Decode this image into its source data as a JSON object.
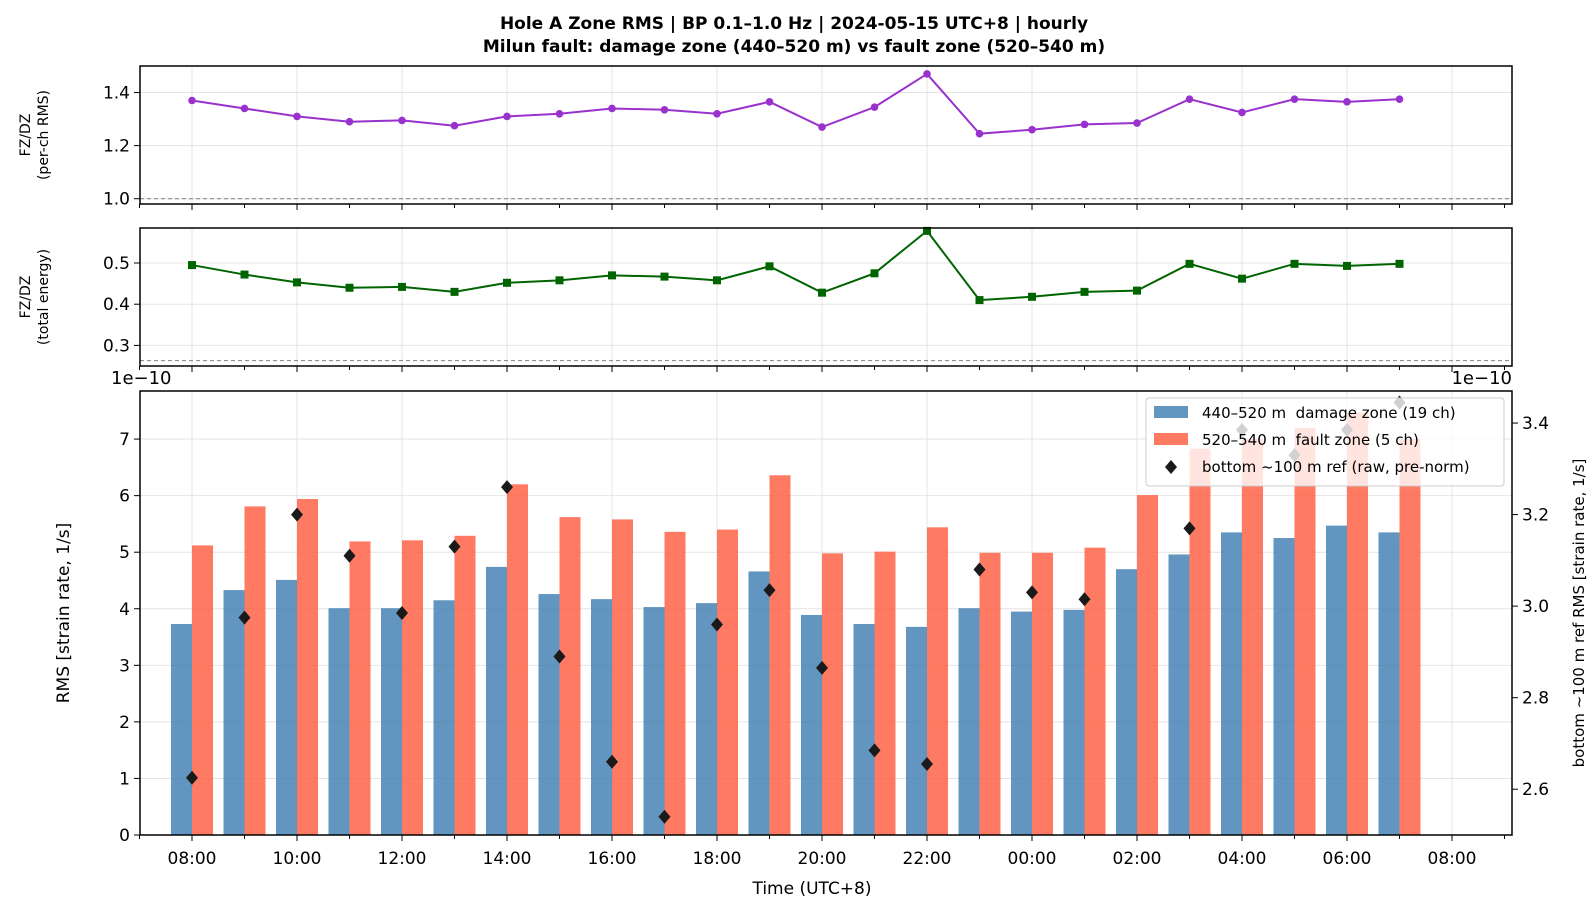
{
  "title_line1": "Hole A Zone RMS  |  BP 0.1–1.0 Hz  |  2024-05-15 UTC+8  |  hourly",
  "title_line2": "Milun fault: damage zone (440–520 m) vs fault zone (520–540 m)",
  "chart_data": [
    {
      "type": "line",
      "ylabel_line1": "FZ/DZ",
      "ylabel_line2": "(per-ch RMS)",
      "ylim": [
        0.98,
        1.5
      ],
      "yticks": [
        "1.0",
        "1.2",
        "1.4"
      ],
      "reference_line": 1.0,
      "color": "#9932CC",
      "marker": "circle",
      "x": [
        "08:00",
        "09:00",
        "10:00",
        "11:00",
        "12:00",
        "13:00",
        "14:00",
        "15:00",
        "16:00",
        "17:00",
        "18:00",
        "19:00",
        "20:00",
        "21:00",
        "22:00",
        "23:00",
        "00:00",
        "01:00",
        "02:00",
        "03:00",
        "04:00",
        "05:00",
        "06:00",
        "07:00"
      ],
      "values": [
        1.37,
        1.34,
        1.31,
        1.29,
        1.295,
        1.275,
        1.31,
        1.32,
        1.34,
        1.335,
        1.32,
        1.365,
        1.27,
        1.345,
        1.47,
        1.245,
        1.26,
        1.28,
        1.285,
        1.375,
        1.325,
        1.375,
        1.365,
        1.375
      ],
      "grid": true
    },
    {
      "type": "line",
      "ylabel_line1": "FZ/DZ",
      "ylabel_line2": "(total energy)",
      "ylim": [
        0.25,
        0.585
      ],
      "yticks": [
        "0.3",
        "0.4",
        "0.5"
      ],
      "reference_line": 0.263,
      "color": "#006400",
      "marker": "square",
      "x": [
        "08:00",
        "09:00",
        "10:00",
        "11:00",
        "12:00",
        "13:00",
        "14:00",
        "15:00",
        "16:00",
        "17:00",
        "18:00",
        "19:00",
        "20:00",
        "21:00",
        "22:00",
        "23:00",
        "00:00",
        "01:00",
        "02:00",
        "03:00",
        "04:00",
        "05:00",
        "06:00",
        "07:00"
      ],
      "values": [
        0.495,
        0.472,
        0.453,
        0.44,
        0.442,
        0.43,
        0.452,
        0.458,
        0.47,
        0.467,
        0.458,
        0.492,
        0.428,
        0.475,
        0.578,
        0.41,
        0.418,
        0.43,
        0.433,
        0.498,
        0.462,
        0.498,
        0.493,
        0.498
      ],
      "grid": true
    },
    {
      "type": "bar",
      "ylabel": "RMS  [strain rate, 1/s]",
      "ylabel_right": "bottom ~100 m ref RMS  [strain rate, 1/s]",
      "xlabel": "Time (UTC+8)",
      "offset_left": "1e−10",
      "offset_right": "1e−10",
      "ylim": [
        0,
        7.85
      ],
      "yticks": [
        "0",
        "1",
        "2",
        "3",
        "4",
        "5",
        "6",
        "7"
      ],
      "ylim_right": [
        2.5,
        3.47
      ],
      "yticks_right": [
        "2.6",
        "2.8",
        "3.0",
        "3.2",
        "3.4"
      ],
      "xtick_labels": [
        "08:00",
        "10:00",
        "12:00",
        "14:00",
        "16:00",
        "18:00",
        "20:00",
        "22:00",
        "00:00",
        "02:00",
        "04:00",
        "06:00",
        "08:00"
      ],
      "legend_position": "upper right",
      "categories": [
        "08:00",
        "09:00",
        "10:00",
        "11:00",
        "12:00",
        "13:00",
        "14:00",
        "15:00",
        "16:00",
        "17:00",
        "18:00",
        "19:00",
        "20:00",
        "21:00",
        "22:00",
        "23:00",
        "00:00",
        "01:00",
        "02:00",
        "03:00",
        "04:00",
        "05:00",
        "06:00",
        "07:00"
      ],
      "series": [
        {
          "name": "440–520 m  damage zone (19 ch)",
          "color": "#4682B4",
          "axis": "left",
          "values": [
            3.73,
            4.33,
            4.51,
            4.01,
            4.01,
            4.15,
            4.74,
            4.26,
            4.17,
            4.03,
            4.1,
            4.66,
            3.89,
            3.73,
            3.68,
            4.01,
            3.95,
            3.98,
            4.7,
            4.96,
            5.35,
            5.25,
            5.47,
            5.35
          ]
        },
        {
          "name": "520–540 m  fault zone (5 ch)",
          "color": "#FF6347",
          "axis": "left",
          "values": [
            5.12,
            5.81,
            5.94,
            5.19,
            5.21,
            5.29,
            6.2,
            5.62,
            5.58,
            5.36,
            5.4,
            6.36,
            4.98,
            5.01,
            5.44,
            4.99,
            4.99,
            5.08,
            6.01,
            6.83,
            7.0,
            7.2,
            7.47,
            7.0
          ]
        },
        {
          "name": "bottom ~100 m ref (raw, pre-norm)",
          "color": "#1a1a1a",
          "axis": "right",
          "marker": "diamond",
          "values": [
            2.625,
            2.975,
            3.2,
            3.11,
            2.985,
            3.13,
            3.26,
            2.89,
            2.66,
            2.54,
            2.96,
            3.035,
            2.865,
            2.685,
            2.655,
            3.08,
            3.03,
            3.015,
            null,
            3.17,
            3.385,
            3.33,
            3.385,
            3.445
          ]
        }
      ],
      "grid": true
    }
  ]
}
